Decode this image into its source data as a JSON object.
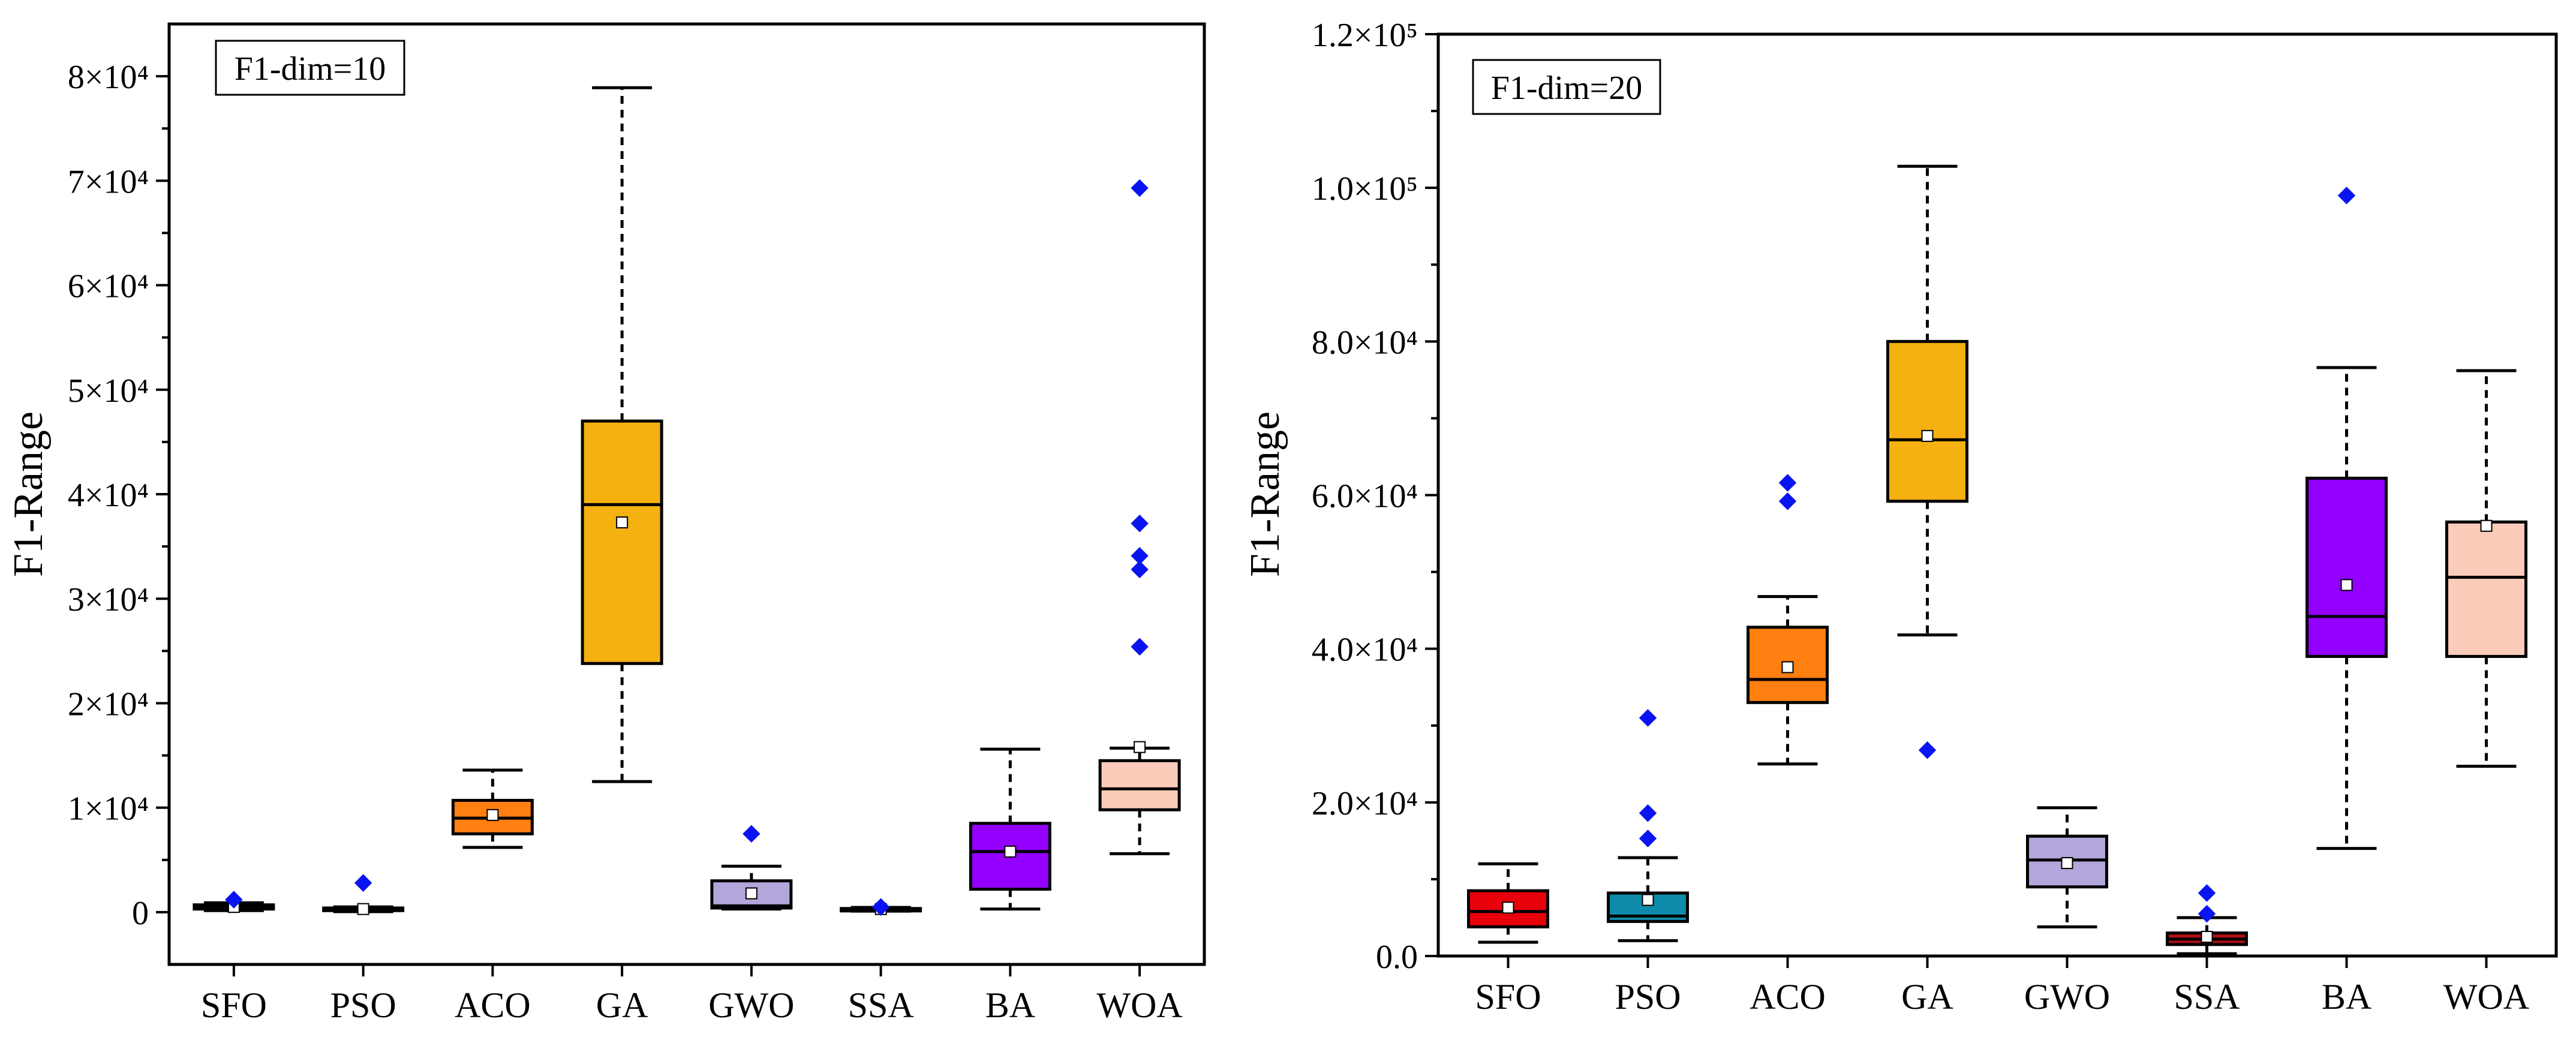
{
  "chart_data": [
    {
      "type": "box",
      "ylabel": "F1-Range",
      "annotation": "F1-dim=10",
      "categories": [
        "SFO",
        "PSO",
        "ACO",
        "GA",
        "GWO",
        "SSA",
        "BA",
        "WOA"
      ],
      "ylim": [
        -5000,
        85000
      ],
      "yticks": [
        {
          "value": 0,
          "label": "0"
        },
        {
          "value": 10000,
          "label": "1×10⁴"
        },
        {
          "value": 20000,
          "label": "2×10⁴"
        },
        {
          "value": 30000,
          "label": "3×10⁴"
        },
        {
          "value": 40000,
          "label": "4×10⁴"
        },
        {
          "value": 50000,
          "label": "5×10⁴"
        },
        {
          "value": 60000,
          "label": "6×10⁴"
        },
        {
          "value": 70000,
          "label": "7×10⁴"
        },
        {
          "value": 80000,
          "label": "8×10⁴"
        }
      ],
      "boxes": [
        {
          "name": "SFO",
          "color": "#e8000b",
          "min": 150,
          "q1": 300,
          "median": 450,
          "q3": 700,
          "max": 900,
          "mean": 500,
          "outliers": [
            1200
          ]
        },
        {
          "name": "PSO",
          "color": "#0e8bab",
          "min": 50,
          "q1": 150,
          "median": 250,
          "q3": 400,
          "max": 500,
          "mean": 300,
          "outliers": [
            2800
          ]
        },
        {
          "name": "ACO",
          "color": "#ff7f10",
          "min": 6200,
          "q1": 7500,
          "median": 9000,
          "q3": 10700,
          "max": 13600,
          "mean": 9300,
          "outliers": []
        },
        {
          "name": "GA",
          "color": "#f5b110",
          "min": 12500,
          "q1": 23800,
          "median": 39000,
          "q3": 47000,
          "max": 78900,
          "mean": 37300,
          "outliers": []
        },
        {
          "name": "GWO",
          "color": "#b3a6da",
          "min": 300,
          "q1": 400,
          "median": 600,
          "q3": 3000,
          "max": 4400,
          "mean": 1800,
          "outliers": [
            7500
          ]
        },
        {
          "name": "SSA",
          "color": "#d4d4d4",
          "min": 100,
          "q1": 200,
          "median": 250,
          "q3": 350,
          "max": 450,
          "mean": 300,
          "outliers": [
            500
          ]
        },
        {
          "name": "BA",
          "color": "#9300ff",
          "min": 300,
          "q1": 2200,
          "median": 5800,
          "q3": 8500,
          "max": 15600,
          "mean": 5800,
          "outliers": []
        },
        {
          "name": "WOA",
          "color": "#fcccbb",
          "min": 5600,
          "q1": 9800,
          "median": 11800,
          "q3": 14500,
          "max": 15700,
          "mean": 15800,
          "outliers": [
            25400,
            32800,
            34100,
            37200,
            69300
          ]
        }
      ]
    },
    {
      "type": "box",
      "ylabel": "F1-Range",
      "annotation": "F1-dim=20",
      "categories": [
        "SFO",
        "PSO",
        "ACO",
        "GA",
        "GWO",
        "SSA",
        "BA",
        "WOA"
      ],
      "ylim": [
        0,
        120000
      ],
      "yticks": [
        {
          "value": 0,
          "label": "0.0"
        },
        {
          "value": 20000,
          "label": "2.0×10⁴"
        },
        {
          "value": 40000,
          "label": "4.0×10⁴"
        },
        {
          "value": 60000,
          "label": "6.0×10⁴"
        },
        {
          "value": 80000,
          "label": "8.0×10⁴"
        },
        {
          "value": 100000,
          "label": "1.0×10⁵"
        },
        {
          "value": 120000,
          "label": "1.2×10⁵"
        }
      ],
      "boxes": [
        {
          "name": "SFO",
          "color": "#e8000b",
          "min": 1800,
          "q1": 3800,
          "median": 5800,
          "q3": 8500,
          "max": 12000,
          "mean": 6300,
          "outliers": []
        },
        {
          "name": "PSO",
          "color": "#0e8bab",
          "min": 2000,
          "q1": 4500,
          "median": 5200,
          "q3": 8200,
          "max": 12800,
          "mean": 7300,
          "outliers": [
            15300,
            18600,
            31000
          ]
        },
        {
          "name": "ACO",
          "color": "#ff7f10",
          "min": 25000,
          "q1": 33000,
          "median": 36000,
          "q3": 42800,
          "max": 46800,
          "mean": 37600,
          "outliers": [
            59200,
            61600
          ]
        },
        {
          "name": "GA",
          "color": "#f5b110",
          "min": 41800,
          "q1": 59200,
          "median": 67200,
          "q3": 80000,
          "max": 102800,
          "mean": 67700,
          "outliers": [
            26800
          ]
        },
        {
          "name": "GWO",
          "color": "#b3a6da",
          "min": 3800,
          "q1": 9000,
          "median": 12500,
          "q3": 15600,
          "max": 19300,
          "mean": 12100,
          "outliers": []
        },
        {
          "name": "SSA",
          "color": "#b01016",
          "min": 300,
          "q1": 1500,
          "median": 2200,
          "q3": 3000,
          "max": 5000,
          "mean": 2500,
          "outliers": [
            5500,
            8200
          ]
        },
        {
          "name": "BA",
          "color": "#9300ff",
          "min": 14000,
          "q1": 39000,
          "median": 44200,
          "q3": 62200,
          "max": 76600,
          "mean": 48300,
          "outliers": [
            99000
          ]
        },
        {
          "name": "WOA",
          "color": "#fcccbb",
          "min": 24700,
          "q1": 39000,
          "median": 49300,
          "q3": 56500,
          "max": 76200,
          "mean": 56000,
          "outliers": []
        }
      ]
    }
  ]
}
